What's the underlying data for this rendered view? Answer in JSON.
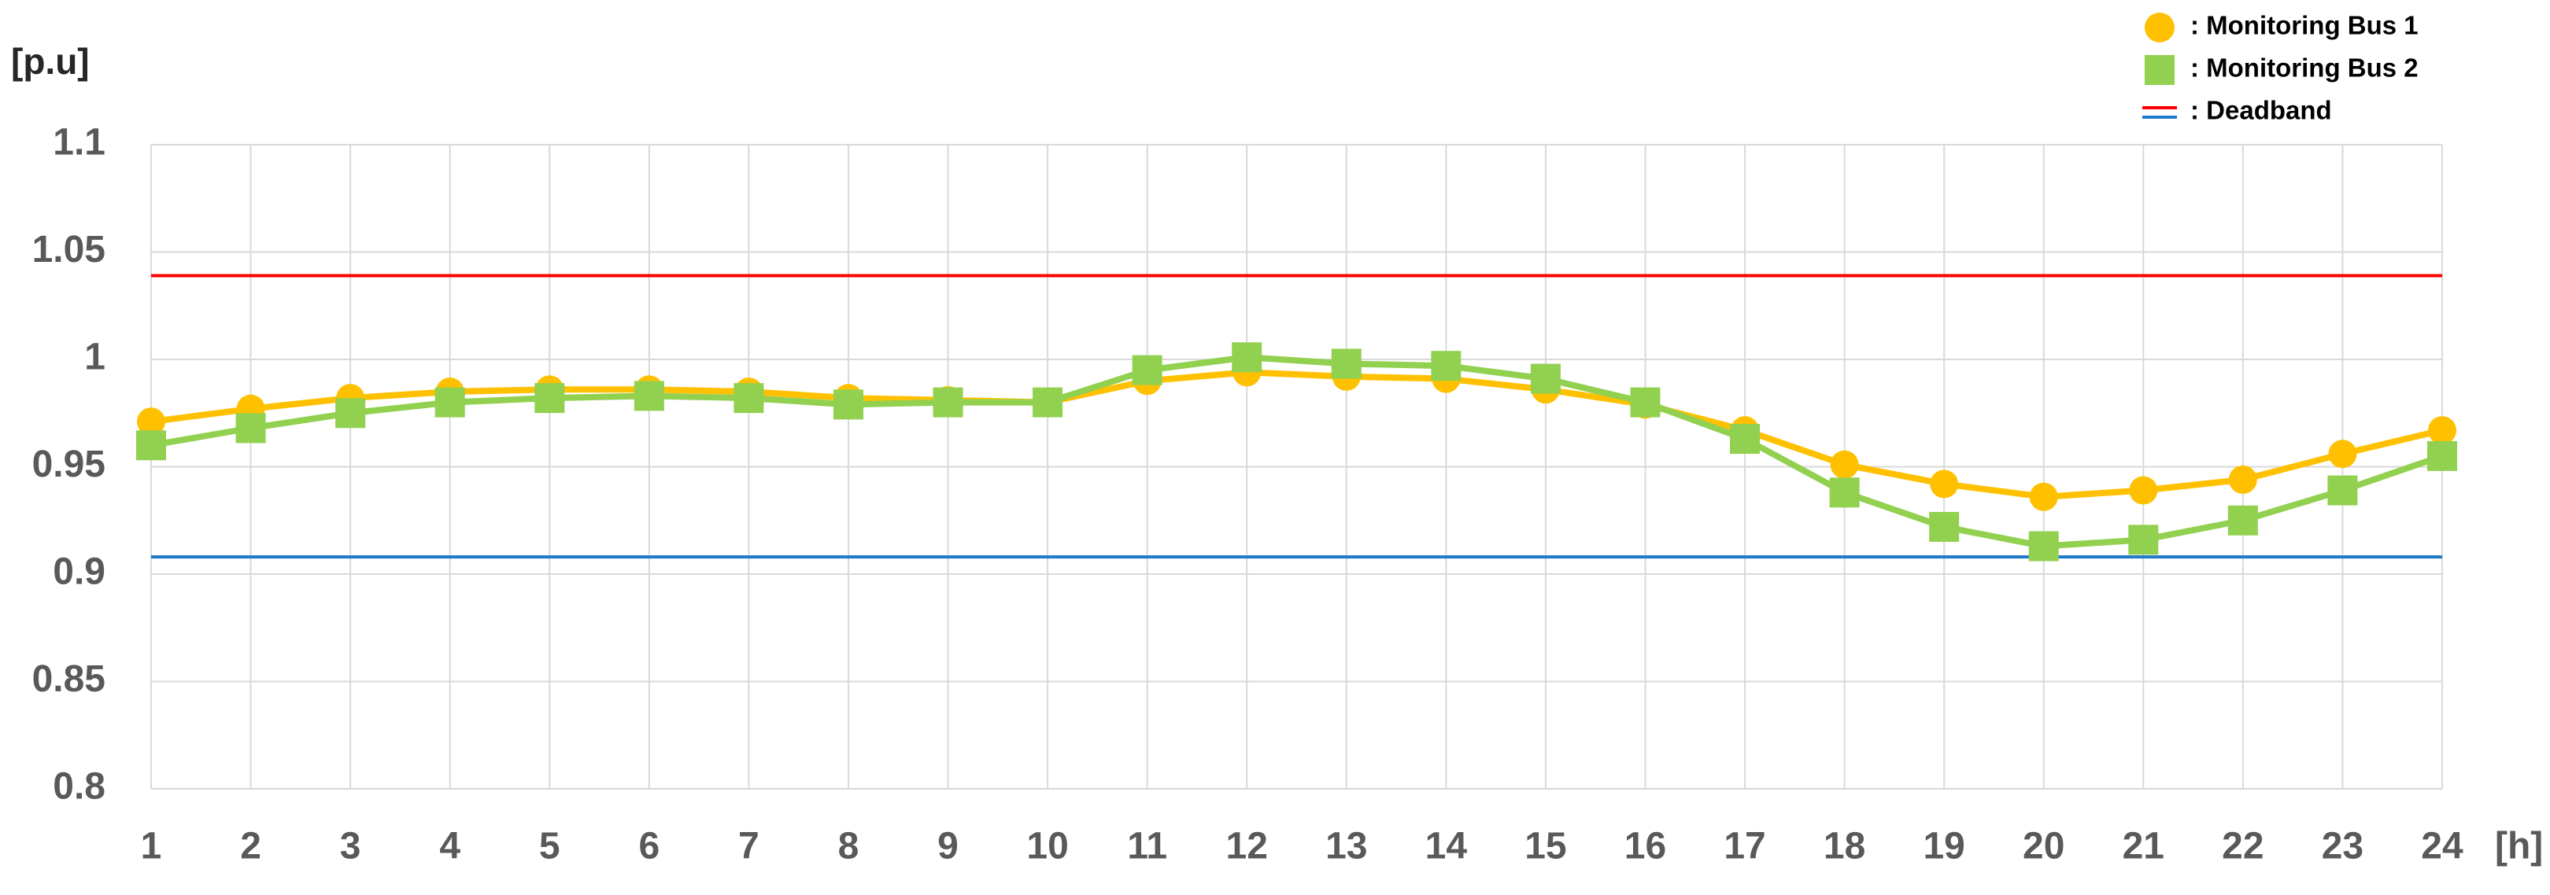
{
  "chart_data": {
    "type": "line",
    "y_axis_label": "[p.u]",
    "x_axis_label": "[h]",
    "x": [
      1,
      2,
      3,
      4,
      5,
      6,
      7,
      8,
      9,
      10,
      11,
      12,
      13,
      14,
      15,
      16,
      17,
      18,
      19,
      20,
      21,
      22,
      23,
      24
    ],
    "xlim": [
      1,
      24
    ],
    "xticks": [
      1,
      2,
      3,
      4,
      5,
      6,
      7,
      8,
      9,
      10,
      11,
      12,
      13,
      14,
      15,
      16,
      17,
      18,
      19,
      20,
      21,
      22,
      23,
      24
    ],
    "ylim": [
      0.8,
      1.1
    ],
    "yticks": [
      0.8,
      0.85,
      0.9,
      0.95,
      1,
      1.05,
      1.1
    ],
    "grid": true,
    "legend": "top-right",
    "series": [
      {
        "name": ": Monitoring Bus 1",
        "color": "#ffc000",
        "marker": "circle",
        "values": [
          0.971,
          0.977,
          0.982,
          0.985,
          0.986,
          0.986,
          0.985,
          0.982,
          0.981,
          0.98,
          0.99,
          0.994,
          0.992,
          0.991,
          0.986,
          0.979,
          0.967,
          0.951,
          0.942,
          0.936,
          0.939,
          0.944,
          0.956,
          0.967
        ]
      },
      {
        "name": ": Monitoring Bus 2",
        "color": "#92d050",
        "marker": "square",
        "values": [
          0.96,
          0.968,
          0.975,
          0.98,
          0.982,
          0.983,
          0.982,
          0.979,
          0.98,
          0.98,
          0.995,
          1.001,
          0.998,
          0.997,
          0.991,
          0.98,
          0.963,
          0.938,
          0.922,
          0.913,
          0.916,
          0.925,
          0.939,
          0.955
        ]
      }
    ],
    "deadband": {
      "name": ": Deadband",
      "lines": [
        {
          "value": 1.039,
          "color": "#ff0000"
        },
        {
          "value": 0.908,
          "color": "#1f78c8"
        }
      ]
    }
  }
}
